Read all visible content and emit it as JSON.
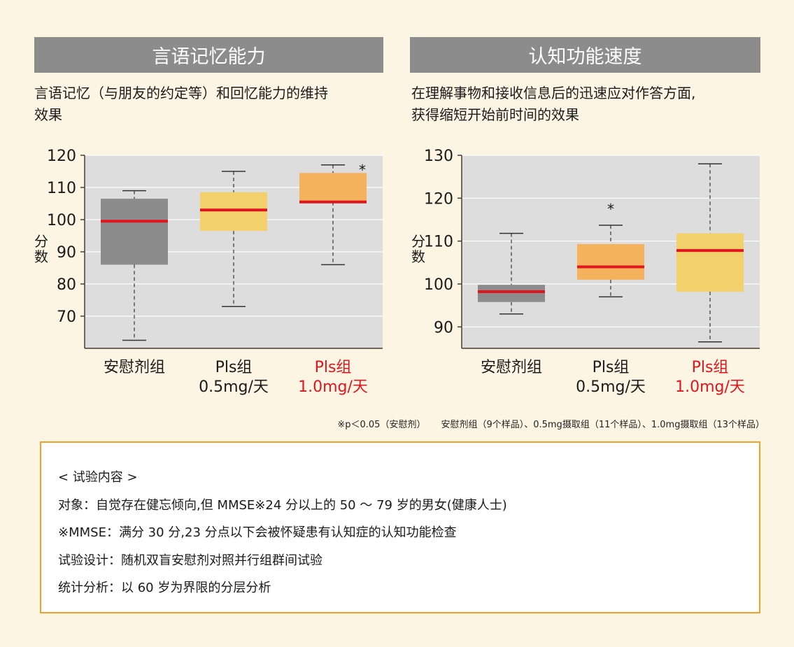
{
  "left_panel": {
    "title": "言语记忆能力",
    "desc_line1": "言语记忆（与朋友的约定等）和回忆能力的维持",
    "desc_line2": "效果"
  },
  "right_panel": {
    "title": "认知功能速度",
    "desc_line1": "在理解事物和接收信息后的迅速应对作答方面,",
    "desc_line2": "获得缩短开始前时间的效果"
  },
  "footnote": {
    "significance": "※p＜0.05（安慰剂）",
    "samples": "安慰剂组（9个样品）、0.5mg摄取组（11个样品）、1.0mg摄取组（13个样品）"
  },
  "info": {
    "heading": "< 试验内容 >",
    "subject": "对象：自觉存在健忘倾向,但 MMSE※24 分以上的 50 ～ 79 岁的男女(健康人士)",
    "mmse": "※MMSE：满分 30 分,23 分点以下会被怀疑患有认知症的认知功能检查",
    "design": "试验设计：随机双盲安慰剂对照并行组群间试验",
    "analysis": "统计分析：以 60 岁为界限的分层分析"
  },
  "colors": {
    "placebo": "#8c8c8c",
    "low_dose": "#f2d06b",
    "high_dose": "#f5b25c",
    "median": "#e0161e",
    "plot_bg": "#dddddd",
    "highlight_text": "#e0161e"
  },
  "chart_data": [
    {
      "type": "box",
      "ylabel": "分数",
      "ylim": [
        60,
        120
      ],
      "yticks": [
        70,
        80,
        90,
        100,
        110,
        120
      ],
      "grid": true,
      "categories": [
        {
          "line1": "安慰剂组",
          "line2": "",
          "highlight": false
        },
        {
          "line1": "Pls组",
          "line2": "0.5mg/天",
          "highlight": false
        },
        {
          "line1": "Pls组",
          "line2": "1.0mg/天",
          "highlight": true
        }
      ],
      "boxes": [
        {
          "min": 62.5,
          "q1": 86,
          "median": 99.5,
          "q3": 106.5,
          "max": 109,
          "color": "#8c8c8c",
          "significant": false
        },
        {
          "min": 73,
          "q1": 96.5,
          "median": 103,
          "q3": 108.5,
          "max": 115,
          "color": "#f2d06b",
          "significant": false
        },
        {
          "min": 86,
          "q1": 105.5,
          "median": 105.5,
          "q3": 114.5,
          "max": 117,
          "color": "#f5b25c",
          "significant": true
        }
      ],
      "annotation": "*"
    },
    {
      "type": "box",
      "ylabel": "分数",
      "ylim": [
        85,
        130
      ],
      "yticks": [
        90,
        100,
        110,
        120,
        130
      ],
      "grid": true,
      "categories": [
        {
          "line1": "安慰剂组",
          "line2": "",
          "highlight": false
        },
        {
          "line1": "Pls组",
          "line2": "0.5mg/天",
          "highlight": false
        },
        {
          "line1": "Pls组",
          "line2": "1.0mg/天",
          "highlight": true
        }
      ],
      "boxes": [
        {
          "min": 93,
          "q1": 95.8,
          "median": 98.2,
          "q3": 99.8,
          "max": 111.8,
          "color": "#8c8c8c",
          "significant": false
        },
        {
          "min": 97,
          "q1": 101,
          "median": 104,
          "q3": 109.3,
          "max": 113.7,
          "color": "#f5b25c",
          "significant": true
        },
        {
          "min": 86.5,
          "q1": 98.2,
          "median": 107.8,
          "q3": 111.8,
          "max": 128,
          "color": "#f2d06b",
          "significant": false
        }
      ],
      "annotation": "*"
    }
  ]
}
